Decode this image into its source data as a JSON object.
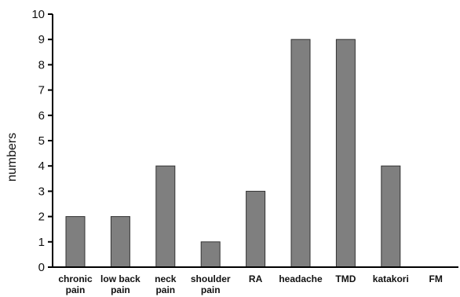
{
  "chart_data": {
    "type": "bar",
    "title": "",
    "xlabel": "",
    "ylabel": "numbers",
    "ylim": [
      0,
      10
    ],
    "yticks": [
      "0",
      "1",
      "2",
      "3",
      "4",
      "5",
      "6",
      "7",
      "8",
      "9",
      "10"
    ],
    "categories": [
      [
        "chronic",
        "pain"
      ],
      [
        "low back",
        "pain"
      ],
      [
        "neck",
        "pain"
      ],
      [
        "shoulder",
        "pain"
      ],
      [
        "RA"
      ],
      [
        "headache"
      ],
      [
        "TMD"
      ],
      [
        "katakori"
      ],
      [
        "FM"
      ]
    ],
    "values": [
      2,
      2,
      4,
      1,
      3,
      9,
      9,
      4,
      0
    ],
    "bar_color": "#7f7f7f",
    "grid": false,
    "legend": "none"
  }
}
